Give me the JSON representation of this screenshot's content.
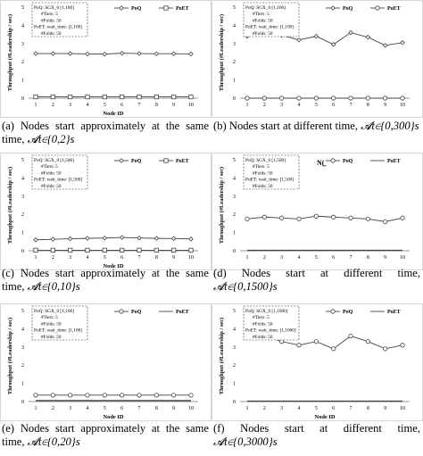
{
  "figure": {
    "panels": [
      {
        "caption_label": "(a) ",
        "caption_text": "Nodes start approximately at the same time, ",
        "caption_math": "𝓐t∈{0,2}s",
        "chart_data": {
          "type": "line",
          "xlabel": "Node ID",
          "ylabel": "Throughput (#Leadership / sec)",
          "categories": [
            1,
            2,
            3,
            4,
            5,
            6,
            7,
            8,
            9,
            10
          ],
          "ylim": [
            0,
            5
          ],
          "yticks": [
            0,
            1,
            2,
            3,
            4,
            5
          ],
          "legend": [
            "PoQ",
            "PoET"
          ],
          "series": [
            {
              "name": "PoQ",
              "marker": "diamond",
              "values": [
                2.45,
                2.45,
                2.45,
                2.43,
                2.42,
                2.47,
                2.45,
                2.44,
                2.44,
                2.43
              ]
            },
            {
              "name": "PoET",
              "marker": "square",
              "values": [
                0.07,
                0.07,
                0.07,
                0.07,
                0.07,
                0.07,
                0.07,
                0.07,
                0.07,
                0.07
              ]
            }
          ],
          "annotation": [
            "PoQ: SGX_0 [1,100]",
            "#Tiers: 5",
            "#Folds: 50",
            "PoET: wait_time: [1,100]",
            "#Folds: 50"
          ],
          "colors": {
            "line": "#444444"
          }
        }
      },
      {
        "caption_label": "(b) ",
        "caption_text": "Nodes start at different time, ",
        "caption_math": "𝓐t∈{0,300}s",
        "chart_data": {
          "type": "line",
          "xlabel": "",
          "ylabel": "Throughput (#Leadership / sec)",
          "categories": [
            1,
            2,
            3,
            4,
            5,
            6,
            7,
            8,
            9,
            10
          ],
          "ylim": [
            0,
            5
          ],
          "yticks": [
            0,
            1,
            2,
            3,
            4,
            5
          ],
          "legend": [
            "PoQ",
            "PoET"
          ],
          "series": [
            {
              "name": "PoQ",
              "marker": "diamond",
              "values": [
                3.4,
                3.7,
                3.45,
                3.2,
                3.4,
                2.95,
                3.6,
                3.35,
                2.9,
                3.05
              ]
            },
            {
              "name": "PoET",
              "marker": "circle",
              "values": [
                0.0,
                0.0,
                0.0,
                0.0,
                0.0,
                0.0,
                0.0,
                0.0,
                0.0,
                0.0
              ]
            }
          ],
          "annotation": [
            "PoQ: SGX_0 [1,100]",
            "#Tiers: 5",
            "#Folds: 50",
            "PoET: wait_time: [1,100]",
            "#Folds: 50"
          ],
          "colors": {
            "line": "#444444"
          }
        }
      },
      {
        "caption_label": "(c) ",
        "caption_text": "Nodes start approximately at the same time, ",
        "caption_math": "𝓐t∈{0,10}s",
        "chart_data": {
          "type": "line",
          "xlabel": "Node ID",
          "ylabel": "Throughput (#Leadership / sec)",
          "categories": [
            1,
            2,
            3,
            4,
            5,
            6,
            7,
            8,
            9,
            10
          ],
          "ylim": [
            0,
            5
          ],
          "yticks": [
            0,
            1,
            2,
            3,
            4,
            5
          ],
          "legend": [
            "PoQ",
            "PoET"
          ],
          "series": [
            {
              "name": "PoQ",
              "marker": "diamond",
              "values": [
                0.6,
                0.63,
                0.66,
                0.68,
                0.7,
                0.73,
                0.7,
                0.68,
                0.67,
                0.65
              ]
            },
            {
              "name": "PoET",
              "marker": "square",
              "values": [
                0.03,
                0.03,
                0.03,
                0.03,
                0.03,
                0.03,
                0.03,
                0.03,
                0.03,
                0.03
              ]
            }
          ],
          "annotation": [
            "PoQ: SGX_0 [1,500]",
            "#Tiers: 5",
            "#Folds: 50",
            "PoET: wait_time: [1,500]",
            "#Folds: 50"
          ],
          "colors": {
            "line": "#444444"
          }
        }
      },
      {
        "caption_label": "(d) ",
        "caption_text": "Nodes start at different time, ",
        "caption_math": "𝓐t∈{0,1500}s",
        "chart_data": {
          "type": "line",
          "xlabel": "",
          "ylabel": "Throughput (#Leadership / sec)",
          "categories": [
            1,
            2,
            3,
            4,
            5,
            6,
            7,
            8,
            9,
            10
          ],
          "ylim": [
            0,
            5
          ],
          "yticks": [
            0,
            1,
            2,
            3,
            4,
            5
          ],
          "legend": [
            "PoQ",
            "PoET"
          ],
          "series": [
            {
              "name": "PoQ",
              "marker": "circle",
              "values": [
                1.75,
                1.85,
                1.8,
                1.75,
                1.9,
                1.85,
                1.8,
                1.75,
                1.6,
                1.8
              ]
            },
            {
              "name": "PoET",
              "marker": "none",
              "values": [
                0.02,
                0.02,
                0.02,
                0.02,
                0.02,
                0.02,
                0.02,
                0.02,
                0.02,
                0.02
              ]
            }
          ],
          "annotation": [
            "PoQ: SGX_0 [1,500]",
            "#Tiers: 5",
            "#Folds: 50",
            "PoET: wait_time: [1,500]",
            "#Folds: 50"
          ],
          "colors": {
            "line": "#444444"
          }
        }
      },
      {
        "caption_label": "(e) ",
        "caption_text": "Nodes start approximately at the same time, ",
        "caption_math": "𝓐t∈{0,20}s",
        "chart_data": {
          "type": "line",
          "xlabel": "Node ID",
          "ylabel": "Throughput (#Leadership / sec)",
          "categories": [
            1,
            2,
            3,
            4,
            5,
            6,
            7,
            8,
            9,
            10
          ],
          "ylim": [
            0,
            5
          ],
          "yticks": [
            0,
            1,
            2,
            3,
            4,
            5
          ],
          "legend": [
            "PoQ",
            "PoET"
          ],
          "series": [
            {
              "name": "PoQ",
              "marker": "circle",
              "values": [
                0.35,
                0.35,
                0.35,
                0.35,
                0.35,
                0.35,
                0.35,
                0.35,
                0.35,
                0.35
              ]
            },
            {
              "name": "PoET",
              "marker": "none",
              "values": [
                0.05,
                0.05,
                0.05,
                0.05,
                0.05,
                0.05,
                0.05,
                0.05,
                0.05,
                0.05
              ]
            }
          ],
          "annotation": [
            "PoQ: SGX_0 [1,100]",
            "#Tiers: 5",
            "#Folds: 50",
            "PoET: wait_time: [1,100]",
            "#Folds: 50"
          ],
          "colors": {
            "line": "#444444"
          }
        }
      },
      {
        "caption_label": "(f) ",
        "caption_text": "Nodes start at different time, ",
        "caption_math": "𝓐t∈{0,3000}s",
        "chart_data": {
          "type": "line",
          "xlabel": "Node ID",
          "ylabel": "Throughput (#Leadership / sec)",
          "categories": [
            1,
            2,
            3,
            4,
            5,
            6,
            7,
            8,
            9,
            10
          ],
          "ylim": [
            0,
            5
          ],
          "yticks": [
            0,
            1,
            2,
            3,
            4,
            5
          ],
          "legend": [
            "PoQ",
            "PoET"
          ],
          "series": [
            {
              "name": "PoQ",
              "marker": "circle",
              "values": [
                3.5,
                3.6,
                3.3,
                3.1,
                3.3,
                2.9,
                3.6,
                3.3,
                2.9,
                3.1
              ]
            },
            {
              "name": "PoET",
              "marker": "none",
              "values": [
                0.02,
                0.02,
                0.02,
                0.02,
                0.02,
                0.02,
                0.02,
                0.02,
                0.02,
                0.02
              ]
            }
          ],
          "annotation": [
            "PoQ: SGX_0 [1,1000]",
            "#Tiers: 5",
            "#Folds: 50",
            "PoET: wait_time: [1,1000]",
            "#Folds: 50"
          ],
          "colors": {
            "line": "#444444"
          }
        }
      }
    ],
    "stray_mark": "N(̲"
  }
}
